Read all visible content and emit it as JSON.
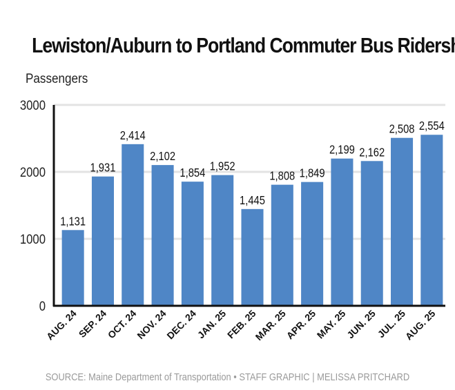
{
  "chart_data": {
    "type": "bar",
    "title": "Lewiston/Auburn to Portland Commuter Bus Ridership",
    "ylabel": "Passengers",
    "xlabel": "",
    "categories": [
      "AUG. 24",
      "SEP. 24",
      "OCT. 24",
      "NOV. 24",
      "DEC. 24",
      "JAN. 25",
      "FEB. 25",
      "MAR. 25",
      "APR. 25",
      "MAY. 25",
      "JUN. 25",
      "JUL. 25",
      "AUG. 25"
    ],
    "values": [
      1131,
      1931,
      2414,
      2102,
      1854,
      1952,
      1445,
      1808,
      1849,
      2199,
      2162,
      2508,
      2554
    ],
    "value_labels": [
      "1,131",
      "1,931",
      "2,414",
      "2,102",
      "1,854",
      "1,952",
      "1,445",
      "1,808",
      "1,849",
      "2,199",
      "2,162",
      "2,508",
      "2,554"
    ],
    "yticks": [
      "0",
      "1000",
      "2000",
      "3000"
    ],
    "ylim": [
      0,
      3000
    ],
    "grid": true,
    "legend": "none",
    "bar_color": "#4f86c6",
    "grid_color": "#e3e3e3",
    "axis_color": "#111111"
  },
  "source": "SOURCE: Maine Department of Transportation • STAFF GRAPHIC | MELISSA PRITCHARD"
}
